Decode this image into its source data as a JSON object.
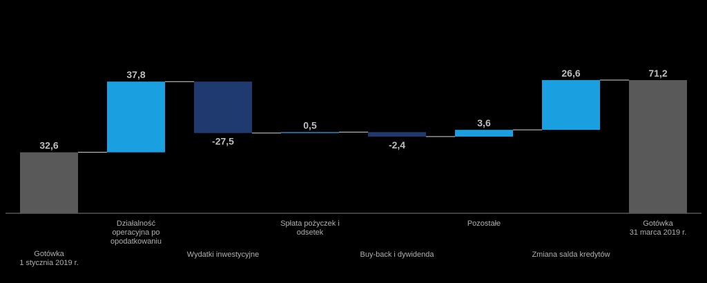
{
  "chart_data": {
    "type": "waterfall",
    "categories": [
      "Gotówka\n1 stycznia 2019 r.",
      "Działalność\noperacyjna po\nopodatkowaniu",
      "Wydatki inwestycyjne",
      "Spłata pożyczek i odsetek",
      "Buy-back i dywidenda",
      "Pozostałe",
      "Zmiana salda kredytów",
      "Gotówka\n31 marca 2019 r."
    ],
    "values": [
      32.6,
      37.8,
      -27.5,
      0.5,
      -2.4,
      3.6,
      26.6,
      71.2
    ],
    "value_labels": [
      "32,6",
      "37,8",
      "-27,5",
      "0,5",
      "-2,4",
      "3,6",
      "26,6",
      "71,2"
    ],
    "colors": [
      "#595959",
      "#1aa0e0",
      "#1f3a6e",
      "#1aa0e0",
      "#1f3a6e",
      "#1aa0e0",
      "#1aa0e0",
      "#595959"
    ],
    "ylim": [
      0,
      80
    ]
  }
}
